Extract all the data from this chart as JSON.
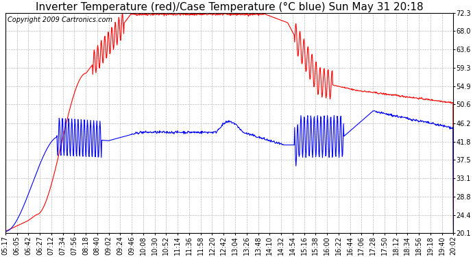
{
  "title": "Inverter Temperature (red)/Case Temperature (°C blue) Sun May 31 20:18",
  "copyright": "Copyright 2009 Cartronics.com",
  "background_color": "#ffffff",
  "plot_bg_color": "#ffffff",
  "grid_color": "#aaaaaa",
  "yticks": [
    20.1,
    24.4,
    28.8,
    33.1,
    37.5,
    41.8,
    46.2,
    50.6,
    54.9,
    59.3,
    63.6,
    68.0,
    72.3
  ],
  "ymin": 20.1,
  "ymax": 72.3,
  "x_labels": [
    "05:17",
    "06:05",
    "06:42",
    "06:27",
    "07:12",
    "07:34",
    "07:56",
    "08:18",
    "08:40",
    "09:02",
    "09:24",
    "09:46",
    "10:08",
    "10:30",
    "10:52",
    "11:14",
    "11:36",
    "11:58",
    "12:20",
    "12:42",
    "13:04",
    "13:26",
    "13:48",
    "14:10",
    "14:32",
    "14:54",
    "15:16",
    "15:38",
    "16:00",
    "16:22",
    "16:44",
    "17:06",
    "17:28",
    "17:50",
    "18:12",
    "18:34",
    "18:56",
    "19:18",
    "19:40",
    "20:02"
  ],
  "red_color": "#ff0000",
  "blue_color": "#0000ff",
  "title_fontsize": 11,
  "axis_fontsize": 7,
  "copyright_fontsize": 7
}
